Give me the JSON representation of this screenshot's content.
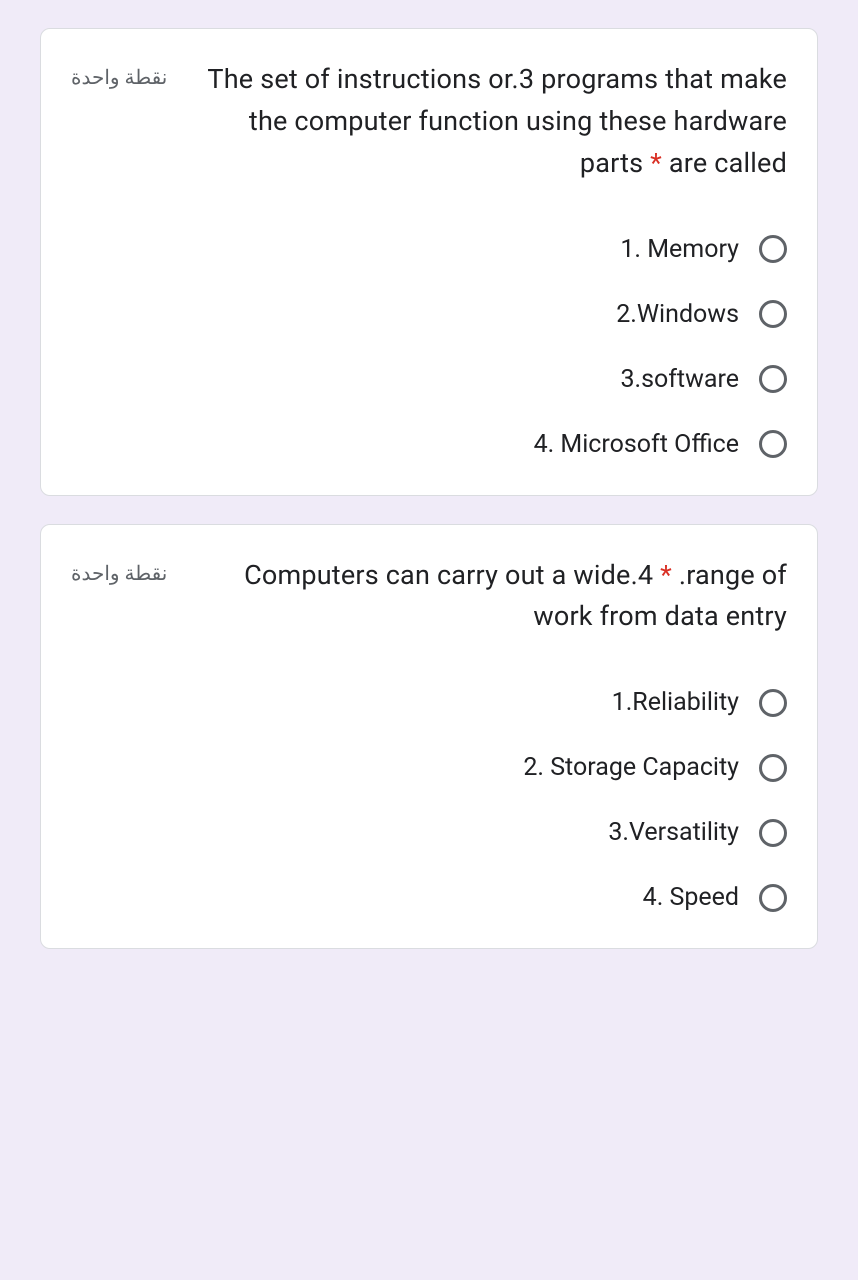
{
  "questions": [
    {
      "points": "نقطة واحدة",
      "title_pre": "The set of instructions or.3 programs that make the computer function using these hardware parts ",
      "title_post": " are called",
      "required": "*",
      "options": [
        "1. Memory",
        "2.Windows",
        "3.software",
        "4. Microsoft Office"
      ]
    },
    {
      "points": "نقطة واحدة",
      "title_pre": "Computers can carry out a wide.4 ",
      "title_post": " .range of work from data entry",
      "required": "*",
      "options": [
        "1.Reliability",
        "2. Storage Capacity",
        "3.Versatility",
        "4. Speed"
      ]
    }
  ]
}
